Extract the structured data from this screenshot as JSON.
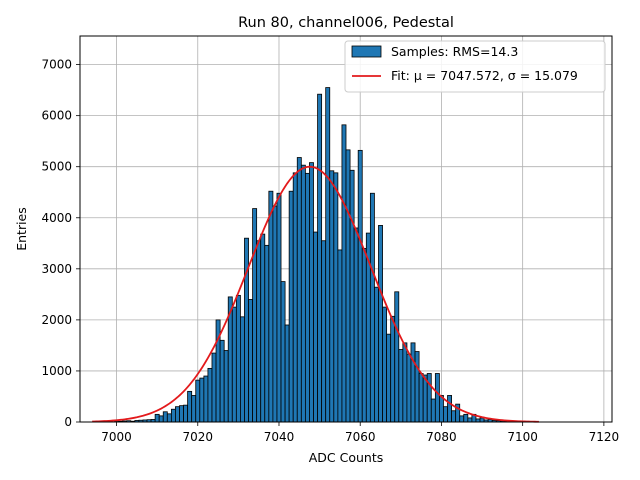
{
  "chart_data": {
    "type": "bar",
    "title": "Run 80, channel006, Pedestal",
    "xlabel": "ADC Counts",
    "ylabel": "Entries",
    "xlim": [
      6991,
      7122
    ],
    "ylim": [
      0,
      7560
    ],
    "xticks": [
      7000,
      7020,
      7040,
      7060,
      7080,
      7100,
      7120
    ],
    "yticks": [
      0,
      1000,
      2000,
      3000,
      4000,
      5000,
      6000,
      7000
    ],
    "grid": true,
    "legend_position": "upper right",
    "colors": {
      "bar_fill": "#1f77b4",
      "bar_edge": "#000000",
      "fit_line": "#e31a1c",
      "grid": "#b0b0b0"
    },
    "series": [
      {
        "name": "Samples: RMS=14.3",
        "kind": "histogram",
        "bin_width": 1,
        "bins": [
          [
            7000,
            10
          ],
          [
            7001,
            15
          ],
          [
            7002,
            20
          ],
          [
            7003,
            25
          ],
          [
            7004,
            15
          ],
          [
            7005,
            30
          ],
          [
            7006,
            35
          ],
          [
            7007,
            40
          ],
          [
            7008,
            45
          ],
          [
            7009,
            50
          ],
          [
            7010,
            150
          ],
          [
            7011,
            120
          ],
          [
            7012,
            200
          ],
          [
            7013,
            160
          ],
          [
            7014,
            250
          ],
          [
            7015,
            300
          ],
          [
            7016,
            320
          ],
          [
            7017,
            330
          ],
          [
            7018,
            600
          ],
          [
            7019,
            520
          ],
          [
            7020,
            820
          ],
          [
            7021,
            860
          ],
          [
            7022,
            900
          ],
          [
            7023,
            1050
          ],
          [
            7024,
            1350
          ],
          [
            7025,
            2000
          ],
          [
            7026,
            1600
          ],
          [
            7027,
            1400
          ],
          [
            7028,
            2450
          ],
          [
            7029,
            2250
          ],
          [
            7030,
            2480
          ],
          [
            7031,
            2060
          ],
          [
            7032,
            3600
          ],
          [
            7033,
            2400
          ],
          [
            7034,
            4180
          ],
          [
            7035,
            3550
          ],
          [
            7036,
            3680
          ],
          [
            7037,
            3460
          ],
          [
            7038,
            4520
          ],
          [
            7039,
            4230
          ],
          [
            7040,
            4480
          ],
          [
            7041,
            2750
          ],
          [
            7042,
            1900
          ],
          [
            7043,
            4520
          ],
          [
            7044,
            4880
          ],
          [
            7045,
            5180
          ],
          [
            7046,
            5030
          ],
          [
            7047,
            4870
          ],
          [
            7048,
            5080
          ],
          [
            7049,
            3720
          ],
          [
            7050,
            6420
          ],
          [
            7051,
            3550
          ],
          [
            7052,
            6550
          ],
          [
            7053,
            4920
          ],
          [
            7054,
            4880
          ],
          [
            7055,
            3370
          ],
          [
            7056,
            5820
          ],
          [
            7057,
            5330
          ],
          [
            7058,
            4930
          ],
          [
            7059,
            3800
          ],
          [
            7060,
            5320
          ],
          [
            7061,
            3400
          ],
          [
            7062,
            3700
          ],
          [
            7063,
            4480
          ],
          [
            7064,
            2640
          ],
          [
            7065,
            3850
          ],
          [
            7066,
            2250
          ],
          [
            7067,
            1720
          ],
          [
            7068,
            2070
          ],
          [
            7069,
            2550
          ],
          [
            7070,
            1420
          ],
          [
            7071,
            1550
          ],
          [
            7072,
            1330
          ],
          [
            7073,
            1550
          ],
          [
            7074,
            1380
          ],
          [
            7075,
            950
          ],
          [
            7076,
            920
          ],
          [
            7077,
            950
          ],
          [
            7078,
            450
          ],
          [
            7079,
            950
          ],
          [
            7080,
            520
          ],
          [
            7081,
            300
          ],
          [
            7082,
            520
          ],
          [
            7083,
            220
          ],
          [
            7084,
            350
          ],
          [
            7085,
            120
          ],
          [
            7086,
            150
          ],
          [
            7087,
            80
          ],
          [
            7088,
            150
          ],
          [
            7089,
            60
          ],
          [
            7090,
            80
          ],
          [
            7091,
            40
          ],
          [
            7092,
            50
          ],
          [
            7093,
            30
          ],
          [
            7094,
            25
          ],
          [
            7095,
            20
          ],
          [
            7096,
            15
          ],
          [
            7097,
            10
          ],
          [
            7098,
            10
          ],
          [
            7099,
            8
          ],
          [
            7100,
            5
          ]
        ]
      },
      {
        "name": "Fit: μ = 7047.572, σ = 15.079",
        "kind": "gaussian_fit",
        "mu": 7047.572,
        "sigma": 15.079,
        "amplitude": 5000,
        "x_range": [
          6994,
          7104
        ]
      }
    ]
  }
}
